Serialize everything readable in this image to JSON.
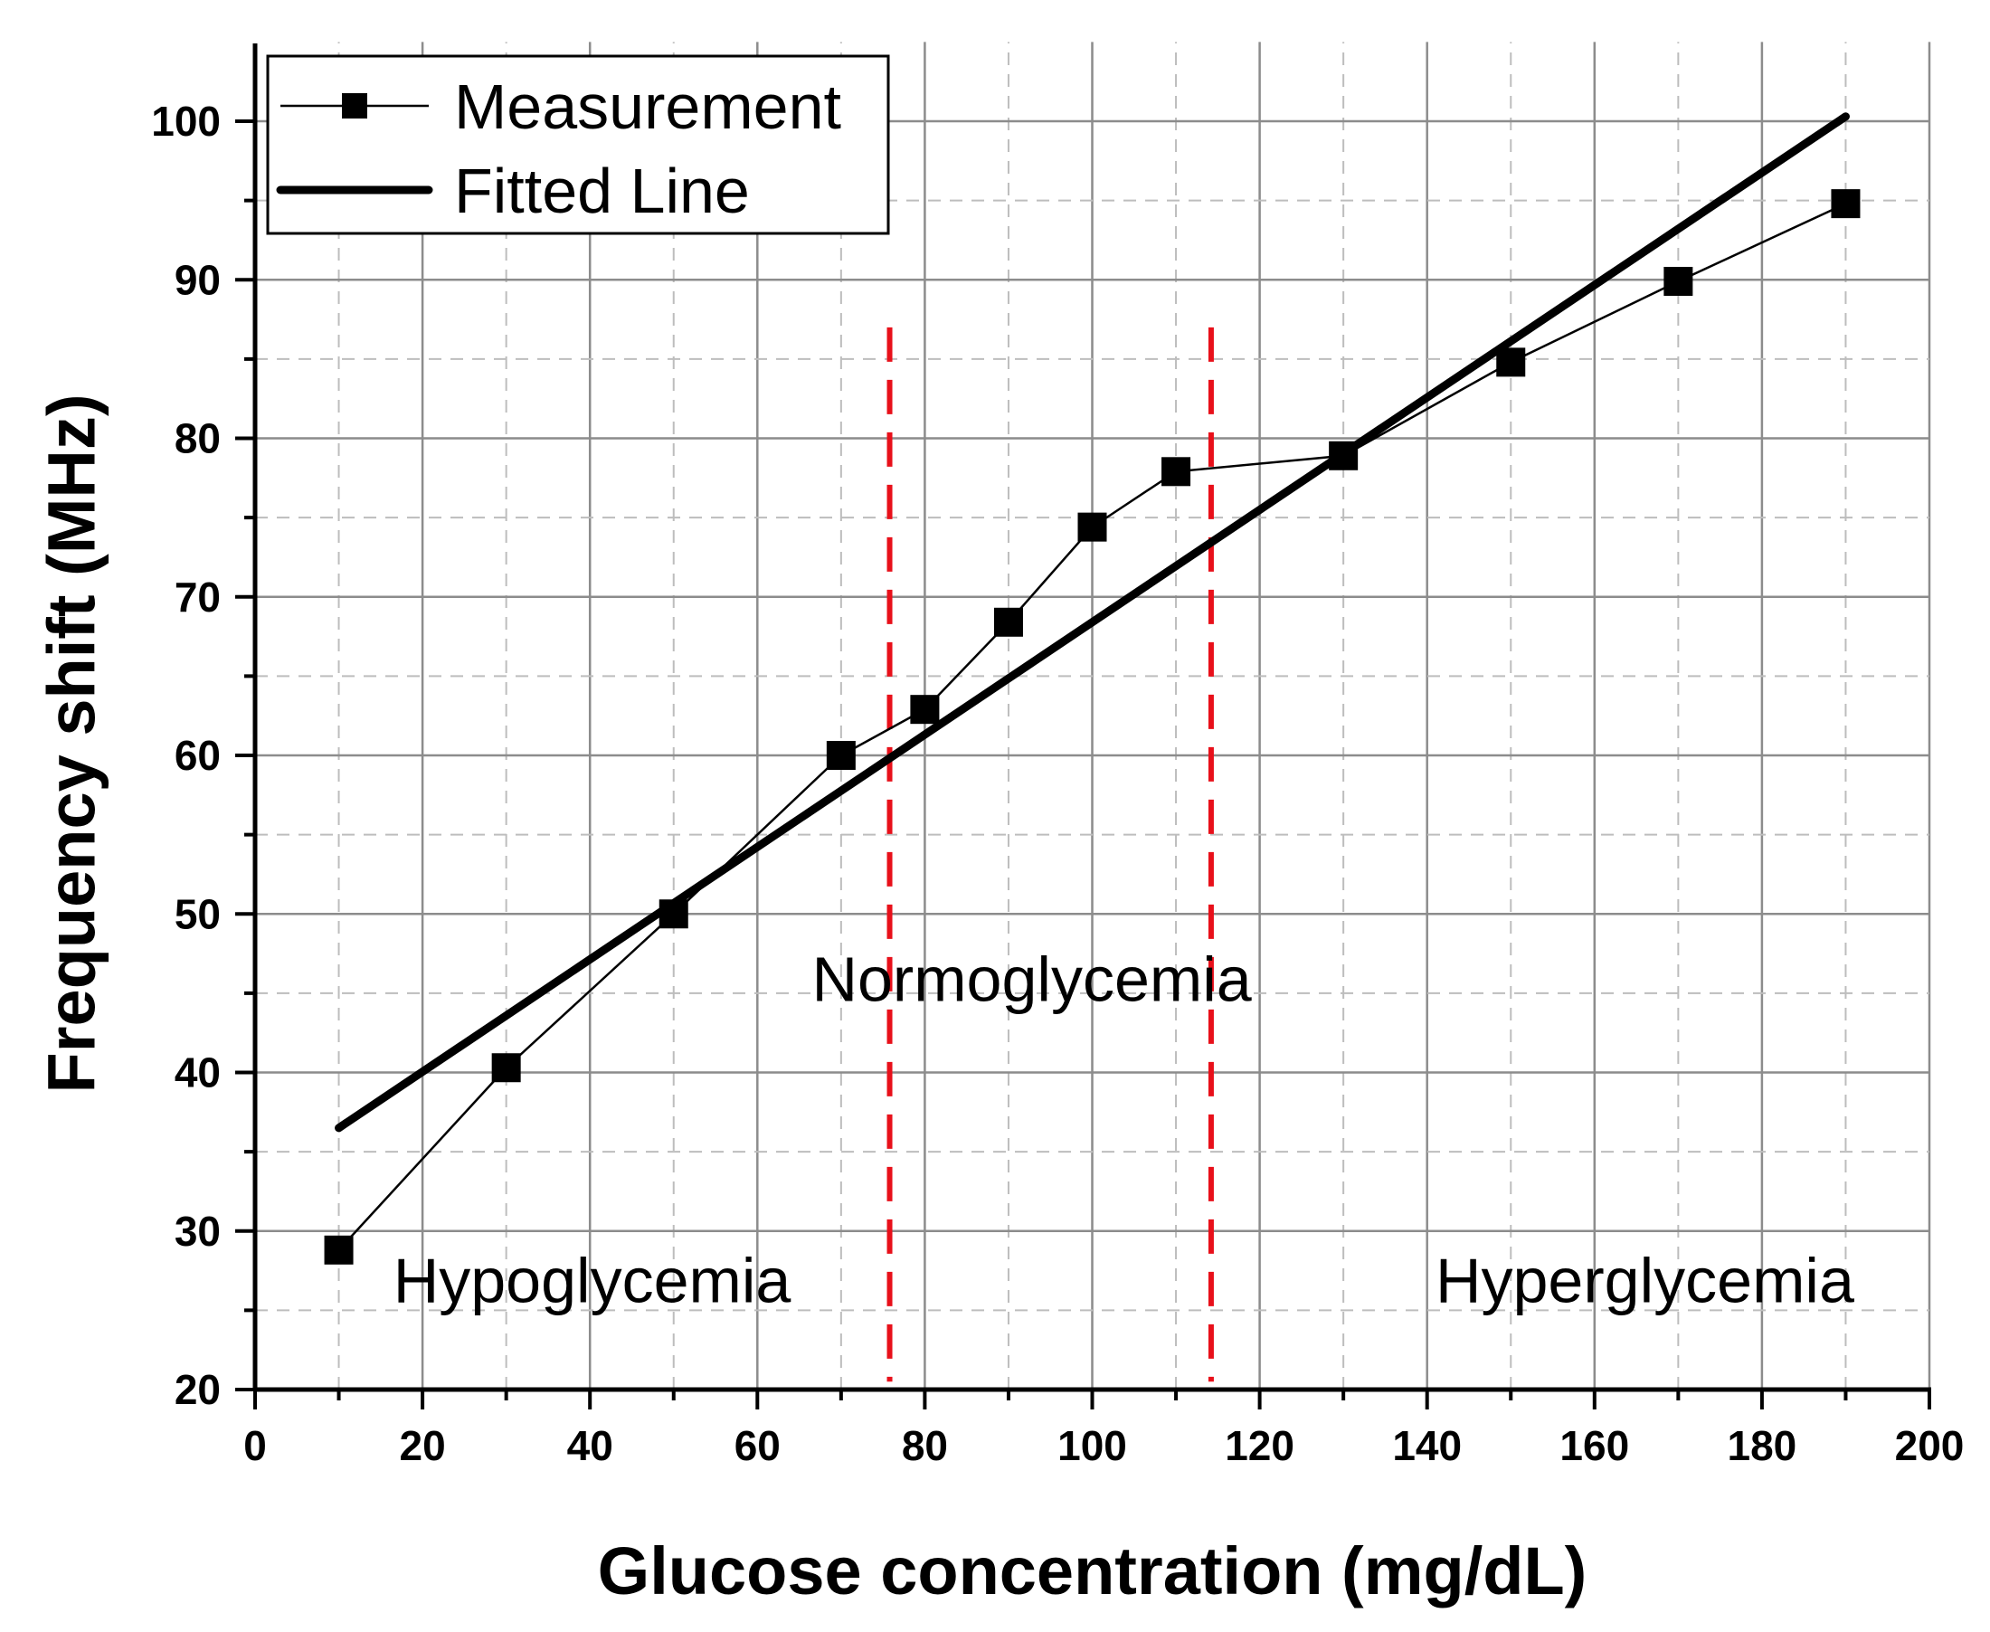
{
  "chart_data": {
    "type": "line",
    "title": "",
    "xlabel": "Glucose concentration (mg/dL)",
    "ylabel": "Frequency shift (MHz)",
    "xlim": [
      0,
      200
    ],
    "ylim": [
      20,
      105
    ],
    "xticks": [
      0,
      20,
      40,
      60,
      80,
      100,
      120,
      140,
      160,
      180,
      200
    ],
    "yticks": [
      20,
      30,
      40,
      50,
      60,
      70,
      80,
      90,
      100
    ],
    "grid": true,
    "legend_position": "top-left",
    "series": [
      {
        "name": "Measurement",
        "style": "line-with-square-markers",
        "color": "#000000",
        "x": [
          10,
          30,
          50,
          70,
          80,
          90,
          100,
          110,
          130,
          150,
          170,
          190
        ],
        "y": [
          28.8,
          40.3,
          50.0,
          60.0,
          62.9,
          68.4,
          74.4,
          77.9,
          78.9,
          84.8,
          89.9,
          94.8
        ]
      },
      {
        "name": "Fitted Line",
        "style": "thick-line",
        "color": "#000000",
        "x": [
          10,
          190
        ],
        "y": [
          36.5,
          100.3
        ]
      }
    ],
    "threshold_lines": [
      {
        "x": 75.8,
        "y_range": [
          20.5,
          87
        ],
        "color": "#e8101a"
      },
      {
        "x": 114.2,
        "y_range": [
          20.5,
          87
        ],
        "color": "#e8101a"
      }
    ],
    "annotations": [
      {
        "text": "Hypoglycemia",
        "x": 16.5,
        "y": 25.5
      },
      {
        "text": "Normoglycemia",
        "x": 66.5,
        "y": 44.5
      },
      {
        "text": "Hyperglycemia",
        "x": 141,
        "y": 25.5
      }
    ]
  }
}
